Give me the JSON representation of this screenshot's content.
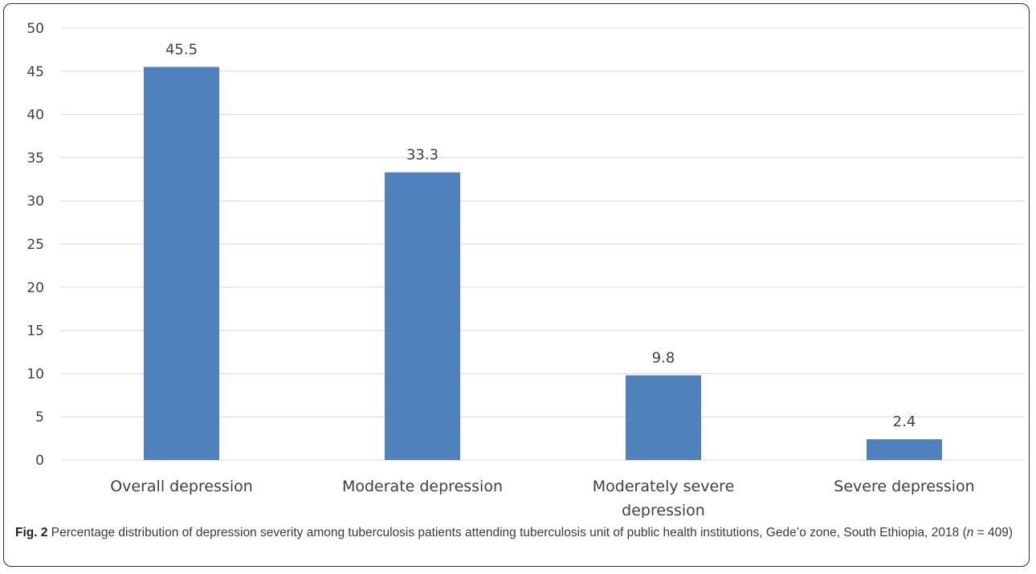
{
  "chart_data": {
    "type": "bar",
    "categories": [
      "Overall depression",
      "Moderate depression",
      "Moderately severe depression",
      "Severe depression"
    ],
    "category_lines": [
      [
        "Overall depression"
      ],
      [
        "Moderate depression"
      ],
      [
        "Moderately severe",
        "depression"
      ],
      [
        "Severe depression"
      ]
    ],
    "values": [
      45.5,
      33.3,
      9.8,
      2.4
    ],
    "data_labels": [
      "45.5",
      "33.3",
      "9.8",
      "2.4"
    ],
    "yticks": [
      "0",
      "5",
      "10",
      "15",
      "20",
      "25",
      "30",
      "35",
      "40",
      "45",
      "50"
    ],
    "ylim": [
      0,
      50
    ],
    "title": "",
    "xlabel": "",
    "ylabel": "",
    "grid": true,
    "legend": "none",
    "bar_color": "#4f81bd",
    "grid_color": "#d9d9d9"
  },
  "caption": {
    "label": "Fig. 2",
    "text_before_n": " Percentage distribution of depression severity among tuberculosis patients attending tuberculosis unit of public health institutions, Gede’o zone, South Ethiopia, 2018 (",
    "n_var": "n",
    "text_after_n": " = 409)"
  }
}
